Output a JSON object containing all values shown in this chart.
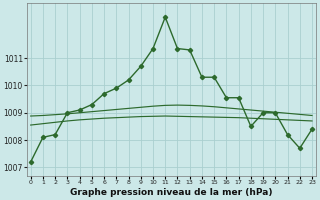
{
  "title": "Graphe pression niveau de la mer (hPa)",
  "bg_color": "#cce8e8",
  "grid_color": "#aacfcf",
  "line_color": "#2d6a2d",
  "x_ticks": [
    0,
    1,
    2,
    3,
    4,
    5,
    6,
    7,
    8,
    9,
    10,
    11,
    12,
    13,
    14,
    15,
    16,
    17,
    18,
    19,
    20,
    21,
    22,
    23
  ],
  "ylim": [
    1006.7,
    1013.0
  ],
  "yticks": [
    1007,
    1008,
    1009,
    1010,
    1011
  ],
  "main_line": [
    1007.2,
    1008.1,
    1008.2,
    1009.0,
    1009.1,
    1009.3,
    1009.7,
    1009.9,
    1010.2,
    1010.7,
    1011.35,
    1012.5,
    1011.35,
    1011.3,
    1010.3,
    1010.3,
    1009.55,
    1009.55,
    1008.5,
    1009.0,
    1009.0,
    1008.2,
    1007.7,
    1008.4
  ],
  "smooth_line1": [
    1008.55,
    1008.6,
    1008.65,
    1008.7,
    1008.74,
    1008.77,
    1008.8,
    1008.82,
    1008.84,
    1008.86,
    1008.87,
    1008.88,
    1008.87,
    1008.86,
    1008.85,
    1008.84,
    1008.83,
    1008.82,
    1008.8,
    1008.78,
    1008.76,
    1008.74,
    1008.72,
    1008.7
  ],
  "smooth_line2": [
    1008.88,
    1008.9,
    1008.93,
    1008.96,
    1009.0,
    1009.04,
    1009.08,
    1009.12,
    1009.16,
    1009.2,
    1009.24,
    1009.27,
    1009.28,
    1009.27,
    1009.25,
    1009.22,
    1009.18,
    1009.14,
    1009.1,
    1009.06,
    1009.02,
    1008.98,
    1008.94,
    1008.9
  ]
}
